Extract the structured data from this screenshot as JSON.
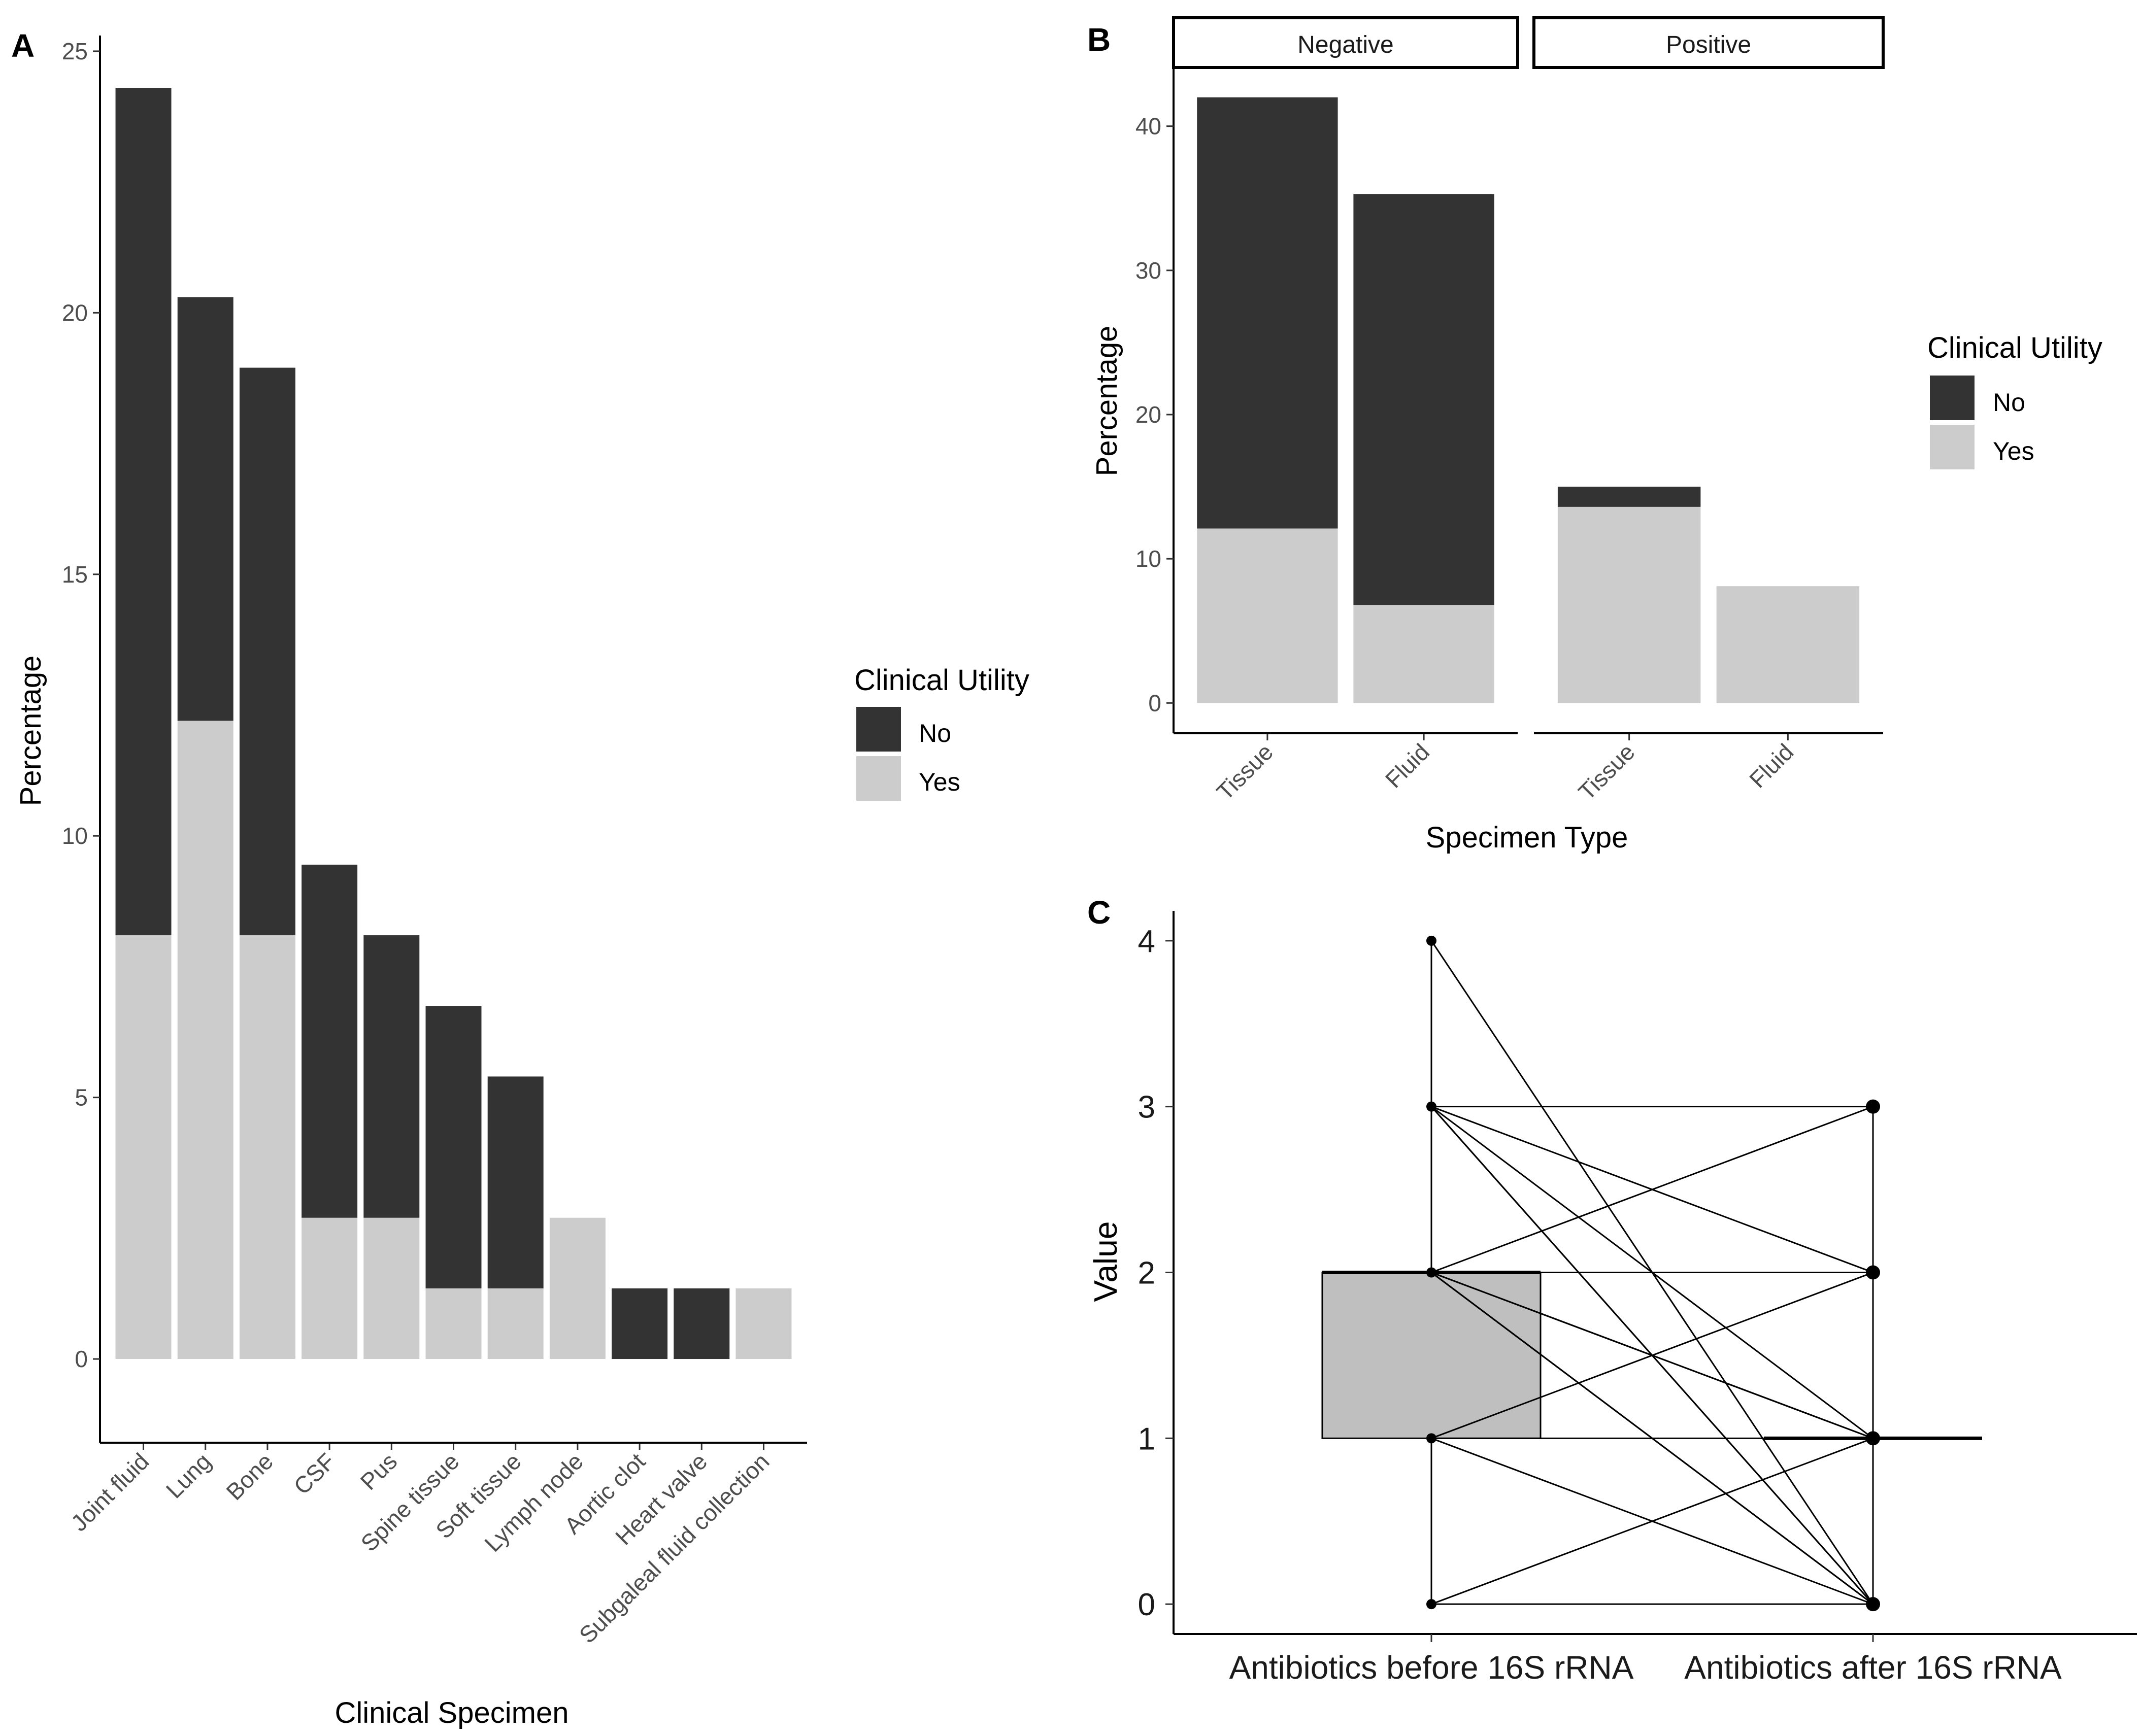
{
  "panels": {
    "a_label": "A",
    "b_label": "B",
    "c_label": "C"
  },
  "chart_data": [
    {
      "panel": "A",
      "type": "bar",
      "stacked": true,
      "xlabel": "Clinical Specimen",
      "ylabel": "Percentage",
      "ylim": [
        -1.6,
        25.3
      ],
      "yticks": [
        0,
        5,
        10,
        15,
        20,
        25
      ],
      "categories": [
        "Joint fluid",
        "Lung",
        "Bone",
        "CSF",
        "Pus",
        "Spine tissue",
        "Soft tissue",
        "Lymph node",
        "Aortic clot",
        "Heart valve",
        "Subgaleal fluid collection"
      ],
      "series": [
        {
          "name": "Yes",
          "color": "#cccccc",
          "values": [
            8.1,
            12.2,
            8.1,
            2.7,
            2.7,
            1.35,
            1.35,
            2.7,
            0,
            0,
            1.35
          ]
        },
        {
          "name": "No",
          "color": "#333333",
          "values": [
            16.2,
            8.1,
            10.85,
            6.75,
            5.4,
            5.4,
            4.05,
            0,
            1.35,
            1.35,
            0
          ]
        }
      ],
      "legend": {
        "title": "Clinical Utility",
        "items": [
          "No",
          "Yes"
        ],
        "position": "right"
      }
    },
    {
      "panel": "B",
      "type": "bar",
      "stacked": true,
      "xlabel": "Specimen Type",
      "ylabel": "Percentage",
      "ylim": [
        -2.1,
        44
      ],
      "yticks": [
        0,
        10,
        20,
        30,
        40
      ],
      "facets": [
        {
          "label": "Negative",
          "categories": [
            "Tissue",
            "Fluid"
          ],
          "series": [
            {
              "name": "Yes",
              "values": [
                12.1,
                6.8
              ]
            },
            {
              "name": "No",
              "values": [
                29.9,
                28.5
              ]
            }
          ]
        },
        {
          "label": "Positive",
          "categories": [
            "Tissue",
            "Fluid"
          ],
          "series": [
            {
              "name": "Yes",
              "values": [
                13.6,
                8.1
              ]
            },
            {
              "name": "No",
              "values": [
                1.4,
                0
              ]
            }
          ]
        }
      ],
      "colors": {
        "Yes": "#cccccc",
        "No": "#333333"
      },
      "legend": {
        "title": "Clinical Utility",
        "items": [
          "No",
          "Yes"
        ],
        "position": "right"
      }
    },
    {
      "panel": "C",
      "type": "scatter",
      "subtype": "paired boxplot",
      "xlabel": "",
      "ylabel": "Value",
      "ylim": [
        -0.18,
        4.18
      ],
      "yticks": [
        0,
        1,
        2,
        3,
        4
      ],
      "categories": [
        "Antibiotics before 16S rRNA",
        "Antibiotics after 16S rRNA"
      ],
      "box_before": {
        "min": 0,
        "q1": 1,
        "median": 2,
        "q3": 2,
        "max": 4,
        "color": "#bfbfbf"
      },
      "box_after": {
        "min": 0,
        "q1": 1,
        "median": 1,
        "q3": 1,
        "max": 3
      },
      "pairs": [
        [
          4,
          0
        ],
        [
          3,
          3
        ],
        [
          3,
          2
        ],
        [
          3,
          1
        ],
        [
          3,
          0
        ],
        [
          3,
          0
        ],
        [
          2,
          3
        ],
        [
          2,
          2
        ],
        [
          2,
          1
        ],
        [
          2,
          1
        ],
        [
          2,
          0
        ],
        [
          2,
          0
        ],
        [
          1,
          2
        ],
        [
          1,
          1
        ],
        [
          1,
          0
        ],
        [
          0,
          1
        ],
        [
          0,
          0
        ]
      ]
    }
  ]
}
